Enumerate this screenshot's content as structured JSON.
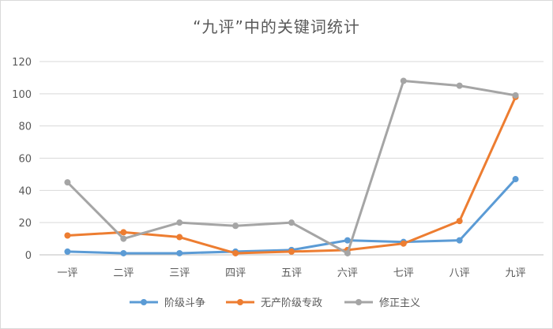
{
  "chart_data": {
    "type": "line",
    "title": "“九评”中的关键词统计",
    "categories": [
      "一评",
      "二评",
      "三评",
      "四评",
      "五评",
      "六评",
      "七评",
      "八评",
      "九评"
    ],
    "series": [
      {
        "name": "阶级斗争",
        "color": "#5b9bd5",
        "values": [
          2,
          1,
          1,
          2,
          3,
          9,
          8,
          9,
          47
        ]
      },
      {
        "name": "无产阶级专政",
        "color": "#ed7d31",
        "values": [
          12,
          14,
          11,
          1,
          2,
          3,
          7,
          21,
          98
        ]
      },
      {
        "name": "修正主义",
        "color": "#a5a5a5",
        "values": [
          45,
          10,
          20,
          18,
          20,
          1,
          108,
          105,
          99
        ]
      }
    ],
    "ylim": [
      0,
      120
    ],
    "yticks": [
      0,
      20,
      40,
      60,
      80,
      100,
      120
    ],
    "grid": true,
    "legend_position": "bottom"
  }
}
